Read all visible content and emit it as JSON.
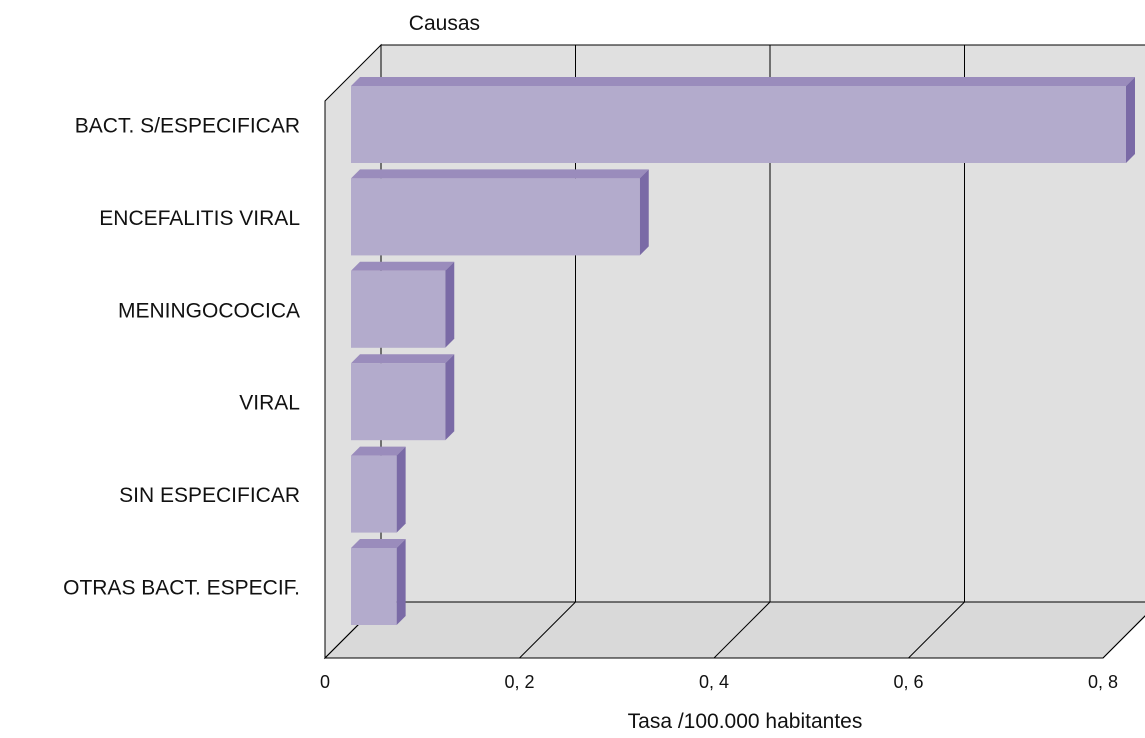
{
  "chart_data": {
    "type": "bar",
    "orientation": "horizontal",
    "three_d": true,
    "ylabel": "Causas",
    "xlabel": "Tasa /100.000 habitantes",
    "categories": [
      "BACT. S/ESPECIFICAR",
      "ENCEFALITIS VIRAL",
      "MENINGOCOCICA",
      "VIRAL",
      "SIN ESPECIFICAR",
      "OTRAS BACT. ESPECIF."
    ],
    "values": [
      0.8,
      0.3,
      0.1,
      0.1,
      0.05,
      0.05
    ],
    "xlim": [
      0,
      0.8
    ],
    "ticks": [
      {
        "value": 0,
        "label": "0"
      },
      {
        "value": 0.2,
        "label": "0, 2"
      },
      {
        "value": 0.4,
        "label": "0, 4"
      },
      {
        "value": 0.6,
        "label": "0, 6"
      },
      {
        "value": 0.8,
        "label": "0, 8"
      }
    ],
    "grid": true,
    "legend": "none",
    "colors": {
      "bar_front": "#b3abcc",
      "bar_top": "#9a8cbc",
      "bar_side": "#7a6aa6",
      "wall": "#e0e0e0",
      "floor": "#d9d9d9",
      "grid": "#000000"
    }
  }
}
